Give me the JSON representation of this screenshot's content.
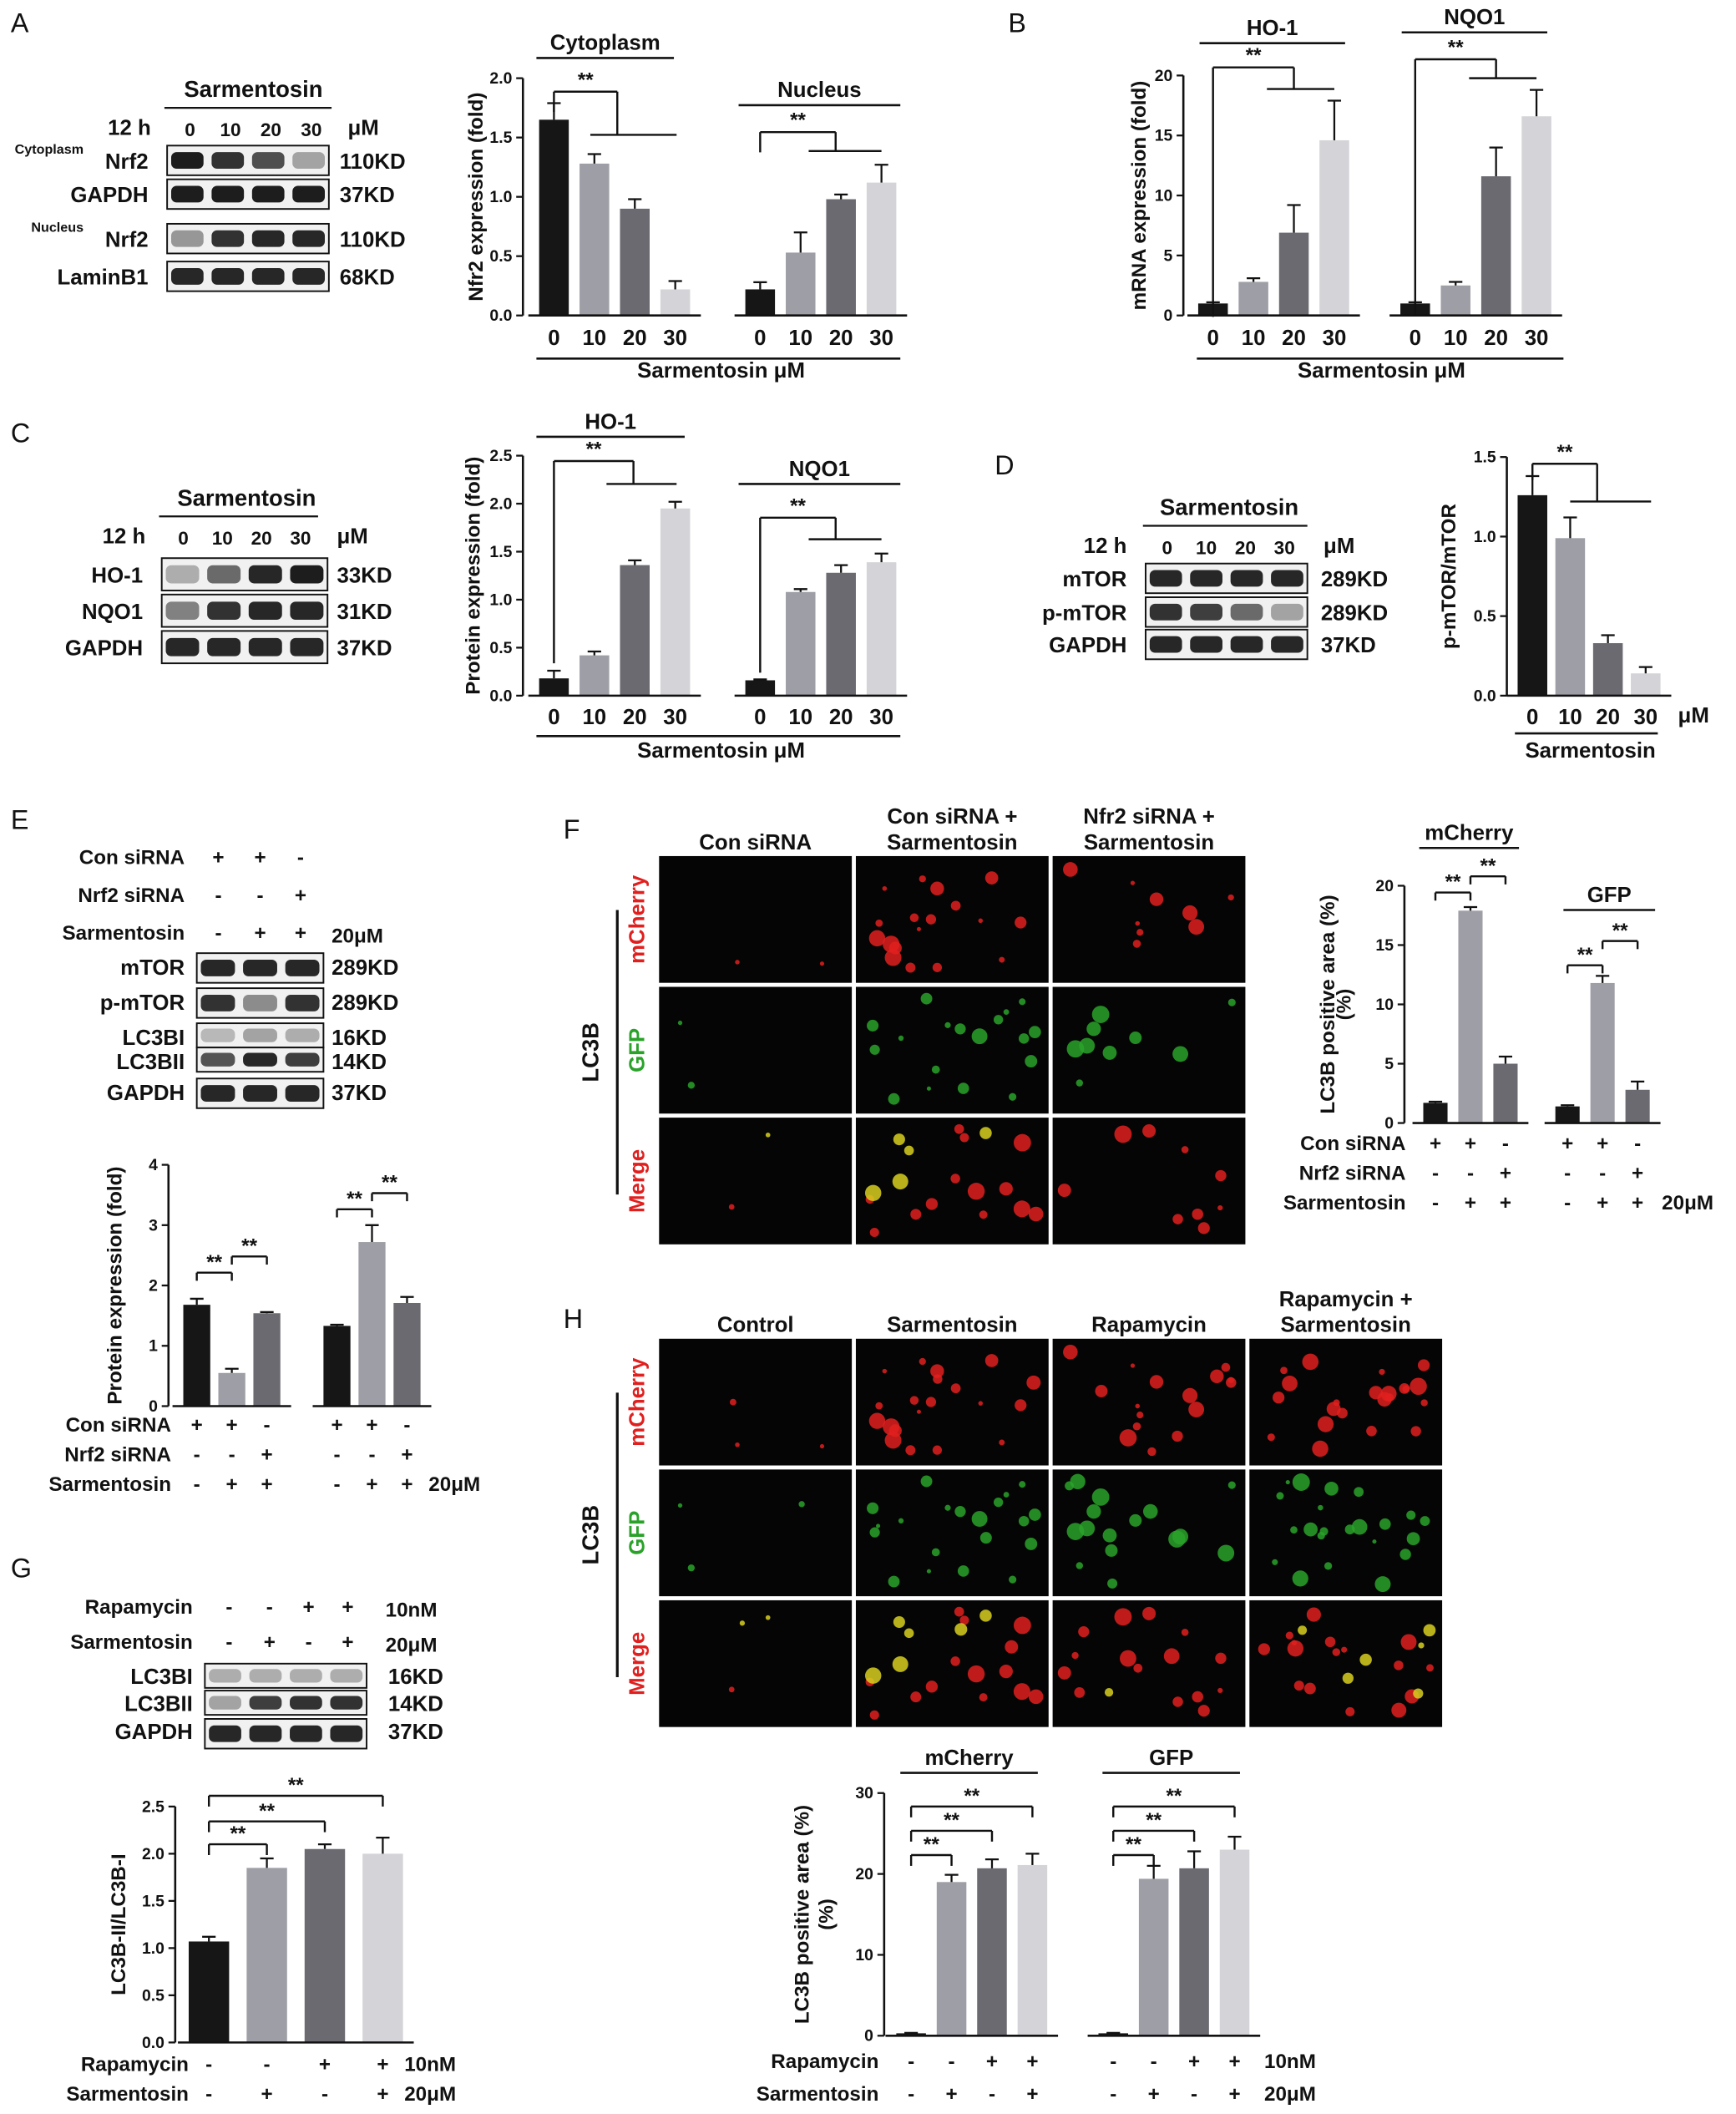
{
  "panel_letters": [
    "A",
    "B",
    "C",
    "D",
    "E",
    "F",
    "G",
    "H"
  ],
  "sig": "**",
  "colors": {
    "c0": "#161616",
    "c1": "#9e9ea6",
    "c2": "#6a6a70",
    "c3": "#d4d4d8",
    "red": "#e0201f",
    "green": "#2aa22a"
  },
  "blots": {
    "A": {
      "title": "Sarmentosin",
      "time": "12 h",
      "unit": "μM",
      "lanes": [
        "0",
        "10",
        "20",
        "30"
      ],
      "rows": [
        {
          "pre": "Cytoplasm",
          "name": "Nrf2",
          "kd": "110KD"
        },
        {
          "pre": "",
          "name": "GAPDH",
          "kd": "37KD"
        },
        {
          "pre": "Nucleus",
          "name": "Nrf2",
          "kd": "110KD"
        },
        {
          "pre": "",
          "name": "LaminB1",
          "kd": "68KD"
        }
      ]
    },
    "C": {
      "title": "Sarmentosin",
      "time": "12 h",
      "unit": "μM",
      "lanes": [
        "0",
        "10",
        "20",
        "30"
      ],
      "rows": [
        {
          "name": "HO-1",
          "kd": "33KD"
        },
        {
          "name": "NQO1",
          "kd": "31KD"
        },
        {
          "name": "GAPDH",
          "kd": "37KD"
        }
      ]
    },
    "D": {
      "title": "Sarmentosin",
      "time": "12 h",
      "unit": "μM",
      "lanes": [
        "0",
        "10",
        "20",
        "30"
      ],
      "rows": [
        {
          "name": "mTOR",
          "kd": "289KD"
        },
        {
          "name": "p-mTOR",
          "kd": "289KD"
        },
        {
          "name": "GAPDH",
          "kd": "37KD"
        }
      ]
    },
    "E": {
      "conds": [
        {
          "label": "Con siRNA",
          "signs": [
            "+",
            "+",
            "-"
          ],
          "unit": ""
        },
        {
          "label": "Nrf2 siRNA",
          "signs": [
            "-",
            "-",
            "+"
          ],
          "unit": ""
        },
        {
          "label": "Sarmentosin",
          "signs": [
            "-",
            "+",
            "+"
          ],
          "unit": "20μM"
        }
      ],
      "rows": [
        {
          "name": "mTOR",
          "kd": "289KD"
        },
        {
          "name": "p-mTOR",
          "kd": "289KD"
        },
        {
          "name": "LC3BI",
          "kd": "16KD"
        },
        {
          "name": "LC3BII",
          "kd": "14KD"
        },
        {
          "name": "GAPDH",
          "kd": "37KD"
        }
      ]
    },
    "G": {
      "conds": [
        {
          "label": "Rapamycin",
          "signs": [
            "-",
            "-",
            "+",
            "+"
          ],
          "unit": "10nM"
        },
        {
          "label": "Sarmentosin",
          "signs": [
            "-",
            "+",
            "-",
            "+"
          ],
          "unit": "20μM"
        }
      ],
      "rows": [
        {
          "name": "LC3BI",
          "kd": "16KD"
        },
        {
          "name": "LC3BII",
          "kd": "14KD"
        },
        {
          "name": "GAPDH",
          "kd": "37KD"
        }
      ]
    }
  },
  "chart_data": [
    {
      "id": "A",
      "type": "bar",
      "ylabel": "Nfr2 expression (fold)",
      "xlabel": "Sarmentosin  μM",
      "ylim": [
        0,
        2.0
      ],
      "yticks": [
        "0.0",
        "0.5",
        "1.0",
        "1.5",
        "2.0"
      ],
      "groups": [
        {
          "name": "Cytoplasm",
          "categories": [
            "0",
            "10",
            "20",
            "30"
          ],
          "values": [
            1.65,
            1.28,
            0.9,
            0.22
          ],
          "errors": [
            0.14,
            0.08,
            0.08,
            0.07
          ]
        },
        {
          "name": "Nucleus",
          "categories": [
            "0",
            "10",
            "20",
            "30"
          ],
          "values": [
            0.22,
            0.53,
            0.98,
            1.12
          ],
          "errors": [
            0.06,
            0.17,
            0.04,
            0.15
          ]
        }
      ]
    },
    {
      "id": "B",
      "type": "bar",
      "ylabel": "mRNA expression (fold)",
      "xlabel": "Sarmentosin  μM",
      "ylim": [
        0,
        20
      ],
      "yticks": [
        "0",
        "5",
        "10",
        "15",
        "20"
      ],
      "groups": [
        {
          "name": "HO-1",
          "categories": [
            "0",
            "10",
            "20",
            "30"
          ],
          "values": [
            1.0,
            2.8,
            6.9,
            14.6
          ],
          "errors": [
            0.1,
            0.3,
            2.3,
            3.3
          ]
        },
        {
          "name": "NQO1",
          "categories": [
            "0",
            "10",
            "20",
            "30"
          ],
          "values": [
            1.0,
            2.5,
            11.6,
            16.6
          ],
          "errors": [
            0.1,
            0.3,
            2.4,
            2.2
          ]
        }
      ]
    },
    {
      "id": "C",
      "type": "bar",
      "ylabel": "Protein expression (fold)",
      "xlabel": "Sarmentosin  μM",
      "ylim": [
        0,
        2.5
      ],
      "yticks": [
        "0.0",
        "0.5",
        "1.0",
        "1.5",
        "2.0",
        "2.5"
      ],
      "groups": [
        {
          "name": "HO-1",
          "categories": [
            "0",
            "10",
            "20",
            "30"
          ],
          "values": [
            0.18,
            0.42,
            1.36,
            1.95
          ],
          "errors": [
            0.08,
            0.04,
            0.05,
            0.07
          ]
        },
        {
          "name": "NQO1",
          "categories": [
            "0",
            "10",
            "20",
            "30"
          ],
          "values": [
            0.16,
            1.08,
            1.28,
            1.39
          ],
          "errors": [
            0.01,
            0.03,
            0.08,
            0.09
          ]
        }
      ]
    },
    {
      "id": "D",
      "type": "bar",
      "ylabel": "p-mTOR/mTOR",
      "xlabel": "Sarmentosin",
      "unit": "μM",
      "ylim": [
        0,
        1.5
      ],
      "yticks": [
        "0.0",
        "0.5",
        "1.0",
        "1.5"
      ],
      "groups": [
        {
          "name": "",
          "categories": [
            "0",
            "10",
            "20",
            "30"
          ],
          "values": [
            1.26,
            0.99,
            0.33,
            0.14
          ],
          "errors": [
            0.12,
            0.13,
            0.05,
            0.04
          ]
        }
      ]
    },
    {
      "id": "E",
      "type": "bar",
      "ylabel": "Protein expression (fold)",
      "ylim": [
        0,
        4
      ],
      "yticks": [
        "0",
        "1",
        "2",
        "3",
        "4"
      ],
      "conds": [
        {
          "label": "Con siRNA",
          "signs": [
            "+",
            "+",
            "-"
          ]
        },
        {
          "label": "Nrf2 siRNA",
          "signs": [
            "-",
            "-",
            "+"
          ]
        },
        {
          "label": "Sarmentosin",
          "signs": [
            "-",
            "+",
            "+"
          ],
          "unit": "20μM"
        }
      ],
      "groups": [
        {
          "name": "",
          "values": [
            1.68,
            0.55,
            1.54
          ],
          "errors": [
            0.1,
            0.07,
            0.02
          ]
        },
        {
          "name": "",
          "values": [
            1.33,
            2.72,
            1.71
          ],
          "errors": [
            0.02,
            0.28,
            0.1
          ]
        }
      ]
    },
    {
      "id": "F",
      "type": "bar",
      "ylabel": "LC3B positive area (%)",
      "ylim": [
        0,
        20
      ],
      "yticks": [
        "0",
        "5",
        "10",
        "15",
        "20"
      ],
      "conds": [
        {
          "label": "Con siRNA",
          "signs": [
            "+",
            "+",
            "-"
          ]
        },
        {
          "label": "Nrf2 siRNA",
          "signs": [
            "-",
            "-",
            "+"
          ]
        },
        {
          "label": "Sarmentosin",
          "signs": [
            "-",
            "+",
            "+"
          ],
          "unit": "20μM"
        }
      ],
      "groups": [
        {
          "name": "mCherry",
          "values": [
            1.7,
            17.9,
            5.0
          ],
          "errors": [
            0.1,
            0.3,
            0.6
          ]
        },
        {
          "name": "GFP",
          "values": [
            1.4,
            11.8,
            2.8
          ],
          "errors": [
            0.1,
            0.6,
            0.7
          ]
        }
      ]
    },
    {
      "id": "G",
      "type": "bar",
      "ylabel": "LC3B-II/LC3B-I",
      "ylim": [
        0,
        2.5
      ],
      "yticks": [
        "0.0",
        "0.5",
        "1.0",
        "1.5",
        "2.0",
        "2.5"
      ],
      "conds": [
        {
          "label": "Rapamycin",
          "signs": [
            "-",
            "-",
            "+",
            "+"
          ],
          "unit": "10nM"
        },
        {
          "label": "Sarmentosin",
          "signs": [
            "-",
            "+",
            "-",
            "+"
          ],
          "unit": "20μM"
        }
      ],
      "groups": [
        {
          "name": "",
          "values": [
            1.07,
            1.85,
            2.05,
            2.0
          ],
          "errors": [
            0.05,
            0.1,
            0.05,
            0.17
          ]
        }
      ]
    },
    {
      "id": "H",
      "type": "bar",
      "ylabel": "LC3B positive area (%)",
      "ylim": [
        0,
        30
      ],
      "yticks": [
        "0",
        "10",
        "20",
        "30"
      ],
      "conds": [
        {
          "label": "Rapamycin",
          "signs": [
            "-",
            "-",
            "+",
            "+"
          ],
          "unit": "10nM"
        },
        {
          "label": "Sarmentosin",
          "signs": [
            "-",
            "+",
            "-",
            "+"
          ],
          "unit": "20μM"
        }
      ],
      "groups": [
        {
          "name": "mCherry",
          "values": [
            0.3,
            19.0,
            20.7,
            21.1
          ],
          "errors": [
            0.05,
            0.9,
            1.1,
            1.4
          ]
        },
        {
          "name": "GFP",
          "values": [
            0.3,
            19.4,
            20.7,
            23.0
          ],
          "errors": [
            0.05,
            1.6,
            2.1,
            1.6
          ]
        }
      ]
    }
  ],
  "micro": {
    "F": {
      "cols": [
        "Con siRNA",
        "Con siRNA +\nSarmentosin",
        "Nfr2 siRNA +\nSarmentosin"
      ],
      "rows": [
        "mCherry",
        "GFP",
        "Merge"
      ],
      "side": "LC3B"
    },
    "H": {
      "cols": [
        "Control",
        "Sarmentosin",
        "Rapamycin",
        "Rapamycin +\nSarmentosin"
      ],
      "rows": [
        "mCherry",
        "GFP",
        "Merge"
      ],
      "side": "LC3B"
    }
  }
}
